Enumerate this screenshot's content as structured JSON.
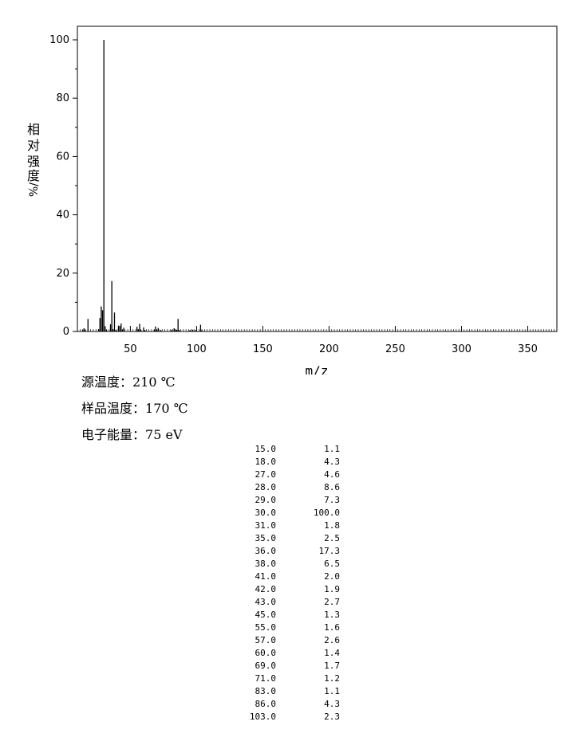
{
  "chart_data": {
    "type": "bar",
    "xlabel": "m/z",
    "ylabel": [
      "相",
      "对",
      "强",
      "度",
      "%/"
    ],
    "xlim": [
      10,
      372
    ],
    "ylim": [
      0,
      100
    ],
    "x_ticks": [
      50,
      100,
      150,
      200,
      250,
      300,
      350
    ],
    "y_ticks": [
      0,
      20,
      40,
      60,
      80,
      100
    ],
    "grid": false,
    "peaks": [
      {
        "mz": 15,
        "value": 1.1
      },
      {
        "mz": 18,
        "value": 4.3
      },
      {
        "mz": 27,
        "value": 4.6
      },
      {
        "mz": 28,
        "value": 8.6
      },
      {
        "mz": 29,
        "value": 7.3
      },
      {
        "mz": 30,
        "value": 100.0
      },
      {
        "mz": 31,
        "value": 1.8
      },
      {
        "mz": 35,
        "value": 2.5
      },
      {
        "mz": 36,
        "value": 17.3
      },
      {
        "mz": 38,
        "value": 6.5
      },
      {
        "mz": 41,
        "value": 2.0
      },
      {
        "mz": 42,
        "value": 1.9
      },
      {
        "mz": 43,
        "value": 2.7
      },
      {
        "mz": 45,
        "value": 1.3
      },
      {
        "mz": 55,
        "value": 1.6
      },
      {
        "mz": 57,
        "value": 2.6
      },
      {
        "mz": 60,
        "value": 1.4
      },
      {
        "mz": 69,
        "value": 1.7
      },
      {
        "mz": 71,
        "value": 1.2
      },
      {
        "mz": 83,
        "value": 1.1
      },
      {
        "mz": 86,
        "value": 4.3
      },
      {
        "mz": 103,
        "value": 2.3
      }
    ],
    "minor_peaks": [
      {
        "mz": 14,
        "value": 0.5
      },
      {
        "mz": 16,
        "value": 0.6
      },
      {
        "mz": 26,
        "value": 0.8
      },
      {
        "mz": 32,
        "value": 0.6
      },
      {
        "mz": 37,
        "value": 0.8
      },
      {
        "mz": 39,
        "value": 0.5
      },
      {
        "mz": 44,
        "value": 0.6
      },
      {
        "mz": 56,
        "value": 0.7
      },
      {
        "mz": 58,
        "value": 0.5
      },
      {
        "mz": 61,
        "value": 0.5
      },
      {
        "mz": 68,
        "value": 0.6
      },
      {
        "mz": 70,
        "value": 0.6
      },
      {
        "mz": 73,
        "value": 0.5
      },
      {
        "mz": 81,
        "value": 0.6
      },
      {
        "mz": 84,
        "value": 0.7
      },
      {
        "mz": 85,
        "value": 0.6
      },
      {
        "mz": 87,
        "value": 0.5
      },
      {
        "mz": 95,
        "value": 0.5
      },
      {
        "mz": 97,
        "value": 0.6
      },
      {
        "mz": 99,
        "value": 0.5
      },
      {
        "mz": 104,
        "value": 0.5
      }
    ]
  },
  "conditions": {
    "source_temp": {
      "label": "源温度：",
      "value": "210 ℃"
    },
    "sample_temp": {
      "label": "样品温度：",
      "value": "170 ℃"
    },
    "electron_energy": {
      "label": "电子能量：",
      "value": "75 eV"
    }
  },
  "peak_table": [
    {
      "mz": "15.0",
      "abundance": "1.1"
    },
    {
      "mz": "18.0",
      "abundance": "4.3"
    },
    {
      "mz": "27.0",
      "abundance": "4.6"
    },
    {
      "mz": "28.0",
      "abundance": "8.6"
    },
    {
      "mz": "29.0",
      "abundance": "7.3"
    },
    {
      "mz": "30.0",
      "abundance": "100.0"
    },
    {
      "mz": "31.0",
      "abundance": "1.8"
    },
    {
      "mz": "35.0",
      "abundance": "2.5"
    },
    {
      "mz": "36.0",
      "abundance": "17.3"
    },
    {
      "mz": "38.0",
      "abundance": "6.5"
    },
    {
      "mz": "41.0",
      "abundance": "2.0"
    },
    {
      "mz": "42.0",
      "abundance": "1.9"
    },
    {
      "mz": "43.0",
      "abundance": "2.7"
    },
    {
      "mz": "45.0",
      "abundance": "1.3"
    },
    {
      "mz": "55.0",
      "abundance": "1.6"
    },
    {
      "mz": "57.0",
      "abundance": "2.6"
    },
    {
      "mz": "60.0",
      "abundance": "1.4"
    },
    {
      "mz": "69.0",
      "abundance": "1.7"
    },
    {
      "mz": "71.0",
      "abundance": "1.2"
    },
    {
      "mz": "83.0",
      "abundance": "1.1"
    },
    {
      "mz": "86.0",
      "abundance": "4.3"
    },
    {
      "mz": "103.0",
      "abundance": "2.3"
    }
  ]
}
